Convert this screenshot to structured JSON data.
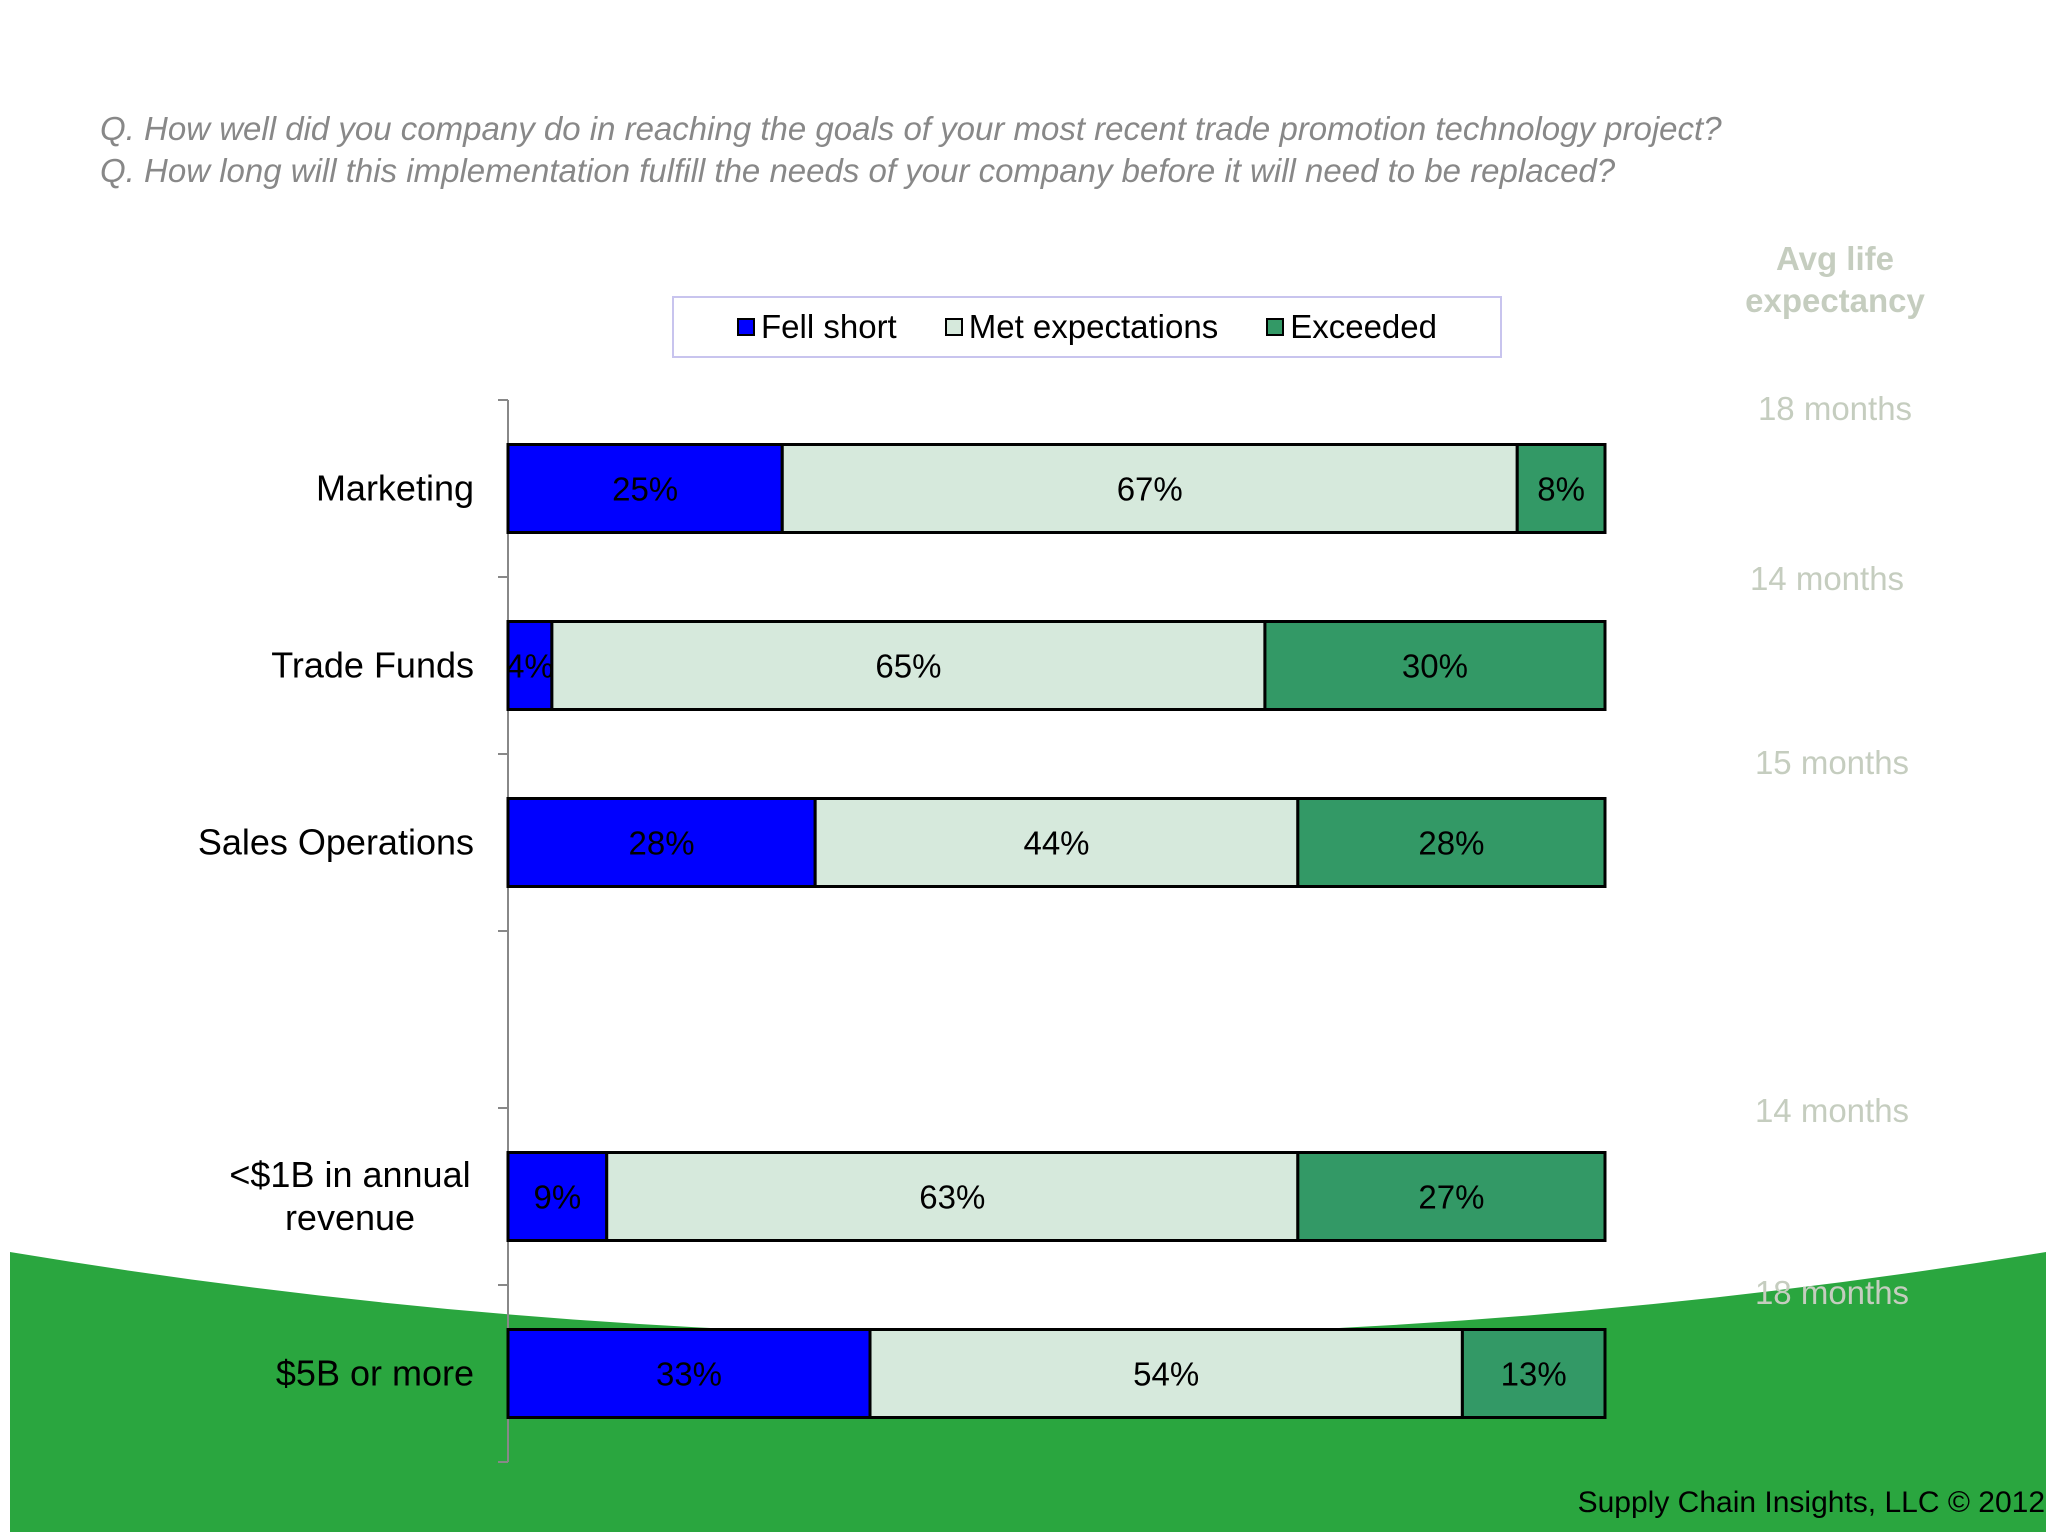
{
  "questions": [
    "Q. How well did you company do in reaching the goals of your most recent trade promotion technology project?",
    "Q. How long will this implementation fulfill the needs of your company before it will need to be replaced?"
  ],
  "avg_life": {
    "header_line1": "Avg life",
    "header_line2": "expectancy",
    "values": [
      "18 months",
      "14 months",
      "15 months",
      "14 months",
      "18 months"
    ]
  },
  "footer": "Supply Chain Insights, LLC © 2012",
  "colors": {
    "fell_short": "#0000ff",
    "met_expectations": "#d6e9dc",
    "exceeded": "#339966",
    "background_wave": "#2aa63f"
  },
  "chart_data": {
    "type": "bar",
    "orientation": "horizontal",
    "stacked": true,
    "percent": true,
    "legend_placement": "top",
    "categories": [
      [
        "Marketing"
      ],
      [
        "Trade Funds"
      ],
      [
        "Sales Operations"
      ],
      [],
      [
        "<$1B in annual",
        "revenue"
      ],
      [
        "$5B or more"
      ]
    ],
    "series": [
      {
        "name": "Fell short",
        "values": [
          25,
          4,
          28,
          null,
          9,
          33
        ],
        "labels": [
          "25%",
          "4%",
          "28%",
          "",
          "9%",
          "33%"
        ]
      },
      {
        "name": "Met expectations",
        "values": [
          67,
          65,
          44,
          null,
          63,
          54
        ],
        "labels": [
          "67%",
          "65%",
          "44%",
          "",
          "63%",
          "54%"
        ]
      },
      {
        "name": "Exceeded",
        "values": [
          8,
          30,
          28,
          null,
          27,
          13
        ],
        "labels": [
          "8%",
          "30%",
          "28%",
          "",
          "27%",
          "13%"
        ]
      }
    ],
    "xlim": [
      0,
      100
    ],
    "grid": false
  }
}
